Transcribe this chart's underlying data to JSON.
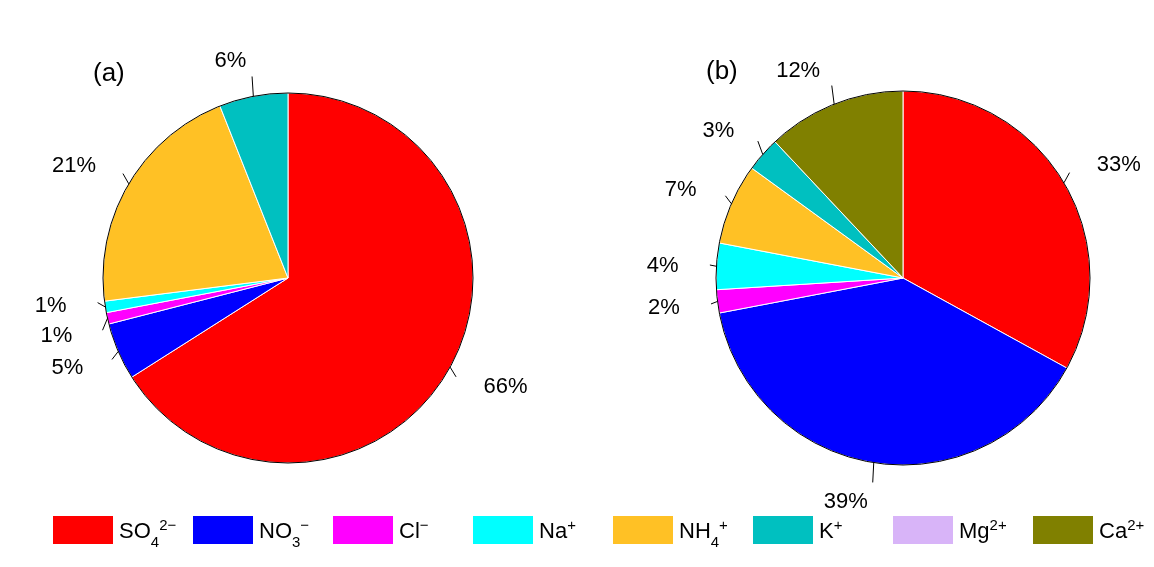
{
  "chart_data": [
    {
      "type": "pie",
      "title": "(a)",
      "categories": [
        "SO$_{4}$$^{2−}$",
        "NO$_{3}$$^{−}$",
        "Cl$^{−}$",
        "Na$^{+}$",
        "NH$_{4}$$^{+}$",
        "K$^{+}$",
        "Mg$^{2+}$",
        "Ca$^{2+}$"
      ],
      "values": [
        66,
        5,
        1,
        1,
        21,
        6,
        null,
        null
      ],
      "value_labels": [
        "66%",
        "5%",
        "1%",
        "1%",
        "21%",
        "6%",
        null,
        null
      ],
      "colors": [
        "#ff0000",
        "#0000ff",
        "#ff00ff",
        "#00ffff",
        "#ffc125",
        "#00c0c0",
        "#d8b4f8",
        "#808000"
      ],
      "legend": "bottom"
    },
    {
      "type": "pie",
      "title": "(b)",
      "categories": [
        null,
        null,
        null,
        null,
        null,
        null,
        null
      ],
      "values": [
        33,
        39,
        2,
        4,
        7,
        3,
        12
      ],
      "value_labels": [
        "33%",
        "39%",
        "2%",
        "4%",
        "7%",
        "3%",
        "12%"
      ],
      "colors": [
        "#ff0000",
        "#0000ff",
        "#ff00ff",
        "#00ffff",
        "#ffc125",
        "#00c0c0",
        "#808000"
      ]
    }
  ]
}
